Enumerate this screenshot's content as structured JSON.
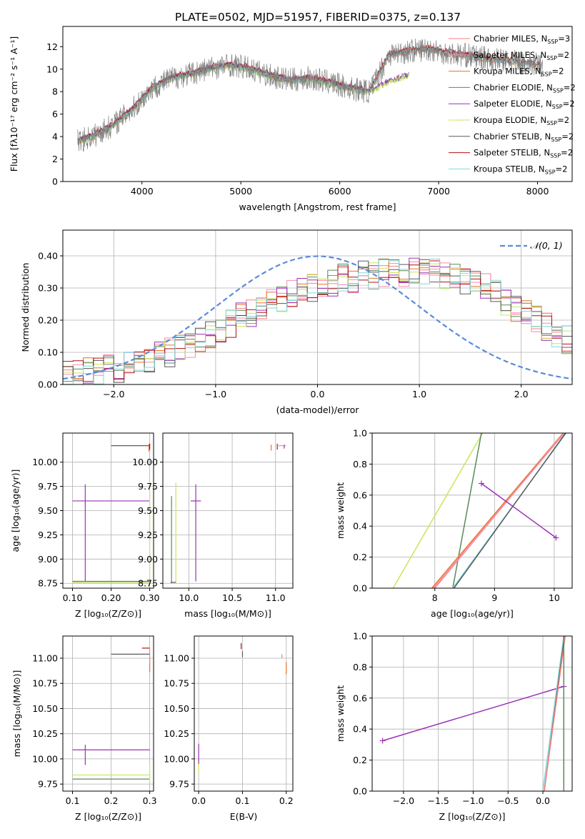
{
  "figure_title": "PLATE=0502, MJD=51957, FIBERID=0375, z=0.137",
  "colors": {
    "spectrum_data": "#808080",
    "series": [
      "#ff7f7f",
      "#f48fb1",
      "#e8712a",
      "#5a8a5a",
      "#9b30b5",
      "#c8e65a",
      "#5a5a5a",
      "#b01010",
      "#80d8e0"
    ],
    "normal_curve": "#5b8bd9",
    "grid": "#b0b0b0"
  },
  "chart_data": [
    {
      "id": "spectrum",
      "type": "line",
      "xlabel": "wavelength [Angstrom, rest frame]",
      "ylabel": "Flux [fλ10⁻¹⁷ erg cm⁻² s⁻¹ A⁻¹]",
      "xlim": [
        3200,
        8350
      ],
      "ylim": [
        0,
        13.8
      ],
      "xticks": [
        4000,
        5000,
        6000,
        7000,
        8000
      ],
      "yticks": [
        0,
        2,
        4,
        6,
        8,
        10,
        12
      ],
      "grid": false,
      "legend_position": "top-right",
      "legend": [
        {
          "label": "Chabrier MILES, N",
          "sub": "SSP",
          "suffix": "=3"
        },
        {
          "label": "Salpeter MILES, N",
          "sub": "SSP",
          "suffix": "=2"
        },
        {
          "label": "Kroupa MILES, N",
          "sub": "SSP",
          "suffix": "=2"
        },
        {
          "label": "Chabrier ELODIE, N",
          "sub": "SSP",
          "suffix": "=2"
        },
        {
          "label": "Salpeter ELODIE, N",
          "sub": "SSP",
          "suffix": "=2"
        },
        {
          "label": "Kroupa ELODIE, N",
          "sub": "SSP",
          "suffix": "=2"
        },
        {
          "label": "Chabrier STELIB, N",
          "sub": "SSP",
          "suffix": "=2"
        },
        {
          "label": "Salpeter STELIB, N",
          "sub": "SSP",
          "suffix": "=2"
        },
        {
          "label": "Kroupa STELIB, N",
          "sub": "SSP",
          "suffix": "=2"
        }
      ],
      "continuum_points": {
        "x": [
          3350,
          3500,
          3700,
          3900,
          4100,
          4300,
          4500,
          4700,
          4900,
          5100,
          5300,
          5500,
          5700,
          5900,
          6100,
          6300,
          6500,
          6700,
          6900,
          7100,
          7300,
          7500,
          7700,
          7900,
          8050
        ],
        "miles_stelib_y": [
          3.6,
          4.0,
          5.0,
          6.4,
          8.3,
          9.2,
          9.6,
          10.1,
          10.4,
          10.0,
          9.4,
          9.0,
          9.2,
          8.8,
          8.3,
          8.0,
          11.3,
          11.6,
          11.8,
          11.4,
          11.2,
          10.9,
          10.7,
          10.5,
          10.3
        ],
        "elodie_y": [
          3.6,
          4.0,
          5.0,
          6.4,
          8.3,
          9.2,
          9.6,
          10.1,
          10.4,
          10.0,
          9.4,
          9.0,
          9.2,
          8.8,
          8.3,
          8.0,
          9.0,
          9.5,
          null,
          null,
          null,
          null,
          null,
          null,
          null
        ]
      }
    },
    {
      "id": "residuals",
      "type": "line",
      "xlabel": "(data-model)/error",
      "ylabel": "Normed distribution",
      "xlim": [
        -2.5,
        2.5
      ],
      "ylim": [
        0,
        0.48
      ],
      "xticks": [
        -2,
        -1,
        0,
        1,
        2
      ],
      "yticks": [
        0.0,
        0.1,
        0.2,
        0.3,
        0.4
      ],
      "grid": true,
      "legend_position": "top-right",
      "legend": [
        "𝒩(0, 1)"
      ],
      "normal": {
        "mean": 0,
        "sigma": 1
      },
      "hist_x": [
        -2.5,
        -2.4,
        -2.3,
        -2.2,
        -2.1,
        -2.0,
        -1.9,
        -1.8,
        -1.7,
        -1.6,
        -1.5,
        -1.4,
        -1.3,
        -1.2,
        -1.1,
        -1.0,
        -0.9,
        -0.8,
        -0.7,
        -0.6,
        -0.5,
        -0.4,
        -0.3,
        -0.2,
        -0.1,
        0.0,
        0.1,
        0.2,
        0.3,
        0.4,
        0.5,
        0.6,
        0.7,
        0.8,
        0.9,
        1.0,
        1.1,
        1.2,
        1.3,
        1.4,
        1.5,
        1.6,
        1.7,
        1.8,
        1.9,
        2.0,
        2.1,
        2.2,
        2.3,
        2.4
      ],
      "hist_y": [
        0.03,
        0.03,
        0.04,
        0.04,
        0.05,
        0.05,
        0.06,
        0.07,
        0.08,
        0.09,
        0.1,
        0.11,
        0.12,
        0.14,
        0.15,
        0.17,
        0.19,
        0.21,
        0.22,
        0.24,
        0.26,
        0.27,
        0.28,
        0.29,
        0.3,
        0.31,
        0.32,
        0.33,
        0.33,
        0.34,
        0.34,
        0.35,
        0.35,
        0.35,
        0.35,
        0.35,
        0.35,
        0.34,
        0.33,
        0.32,
        0.31,
        0.3,
        0.28,
        0.26,
        0.24,
        0.22,
        0.2,
        0.18,
        0.16,
        0.14
      ]
    },
    {
      "id": "age_vs_Z",
      "type": "scatter",
      "xlabel": "Z [log₁₀(Z/Z⊙)]",
      "ylabel": "age  [log₁₀(age/yr)]",
      "xlim": [
        0.075,
        0.31
      ],
      "ylim": [
        8.7,
        10.3
      ],
      "xticks": [
        0.1,
        0.2,
        0.3
      ],
      "yticks": [
        8.75,
        9.0,
        9.25,
        9.5,
        9.75,
        10.0
      ],
      "grid": true
    },
    {
      "id": "age_vs_mass",
      "type": "scatter",
      "xlabel": "mass [log₁₀(M/M⊙)]",
      "ylabel": "",
      "xlim": [
        9.7,
        11.2
      ],
      "ylim": [
        8.7,
        10.3
      ],
      "xticks": [
        10.0,
        10.5,
        11.0
      ],
      "yticks": [
        8.75,
        9.0,
        9.25,
        9.5,
        9.75,
        10.0
      ],
      "grid": true
    },
    {
      "id": "weight_vs_age",
      "type": "line",
      "xlabel": "age  [log₁₀(age/yr)]",
      "ylabel": "mass weight",
      "xlim": [
        6.95,
        10.3
      ],
      "ylim": [
        0,
        1
      ],
      "xticks": [
        8,
        9,
        10
      ],
      "yticks": [
        0.0,
        0.2,
        0.4,
        0.6,
        0.8,
        1.0
      ],
      "grid": true
    },
    {
      "id": "mass_vs_Z",
      "type": "scatter",
      "xlabel": "Z [log₁₀(Z/Z⊙)]",
      "ylabel": "mass [log₁₀(M/M⊙)]",
      "xlim": [
        0.075,
        0.31
      ],
      "ylim": [
        9.68,
        11.22
      ],
      "xticks": [
        0.1,
        0.2,
        0.3
      ],
      "yticks": [
        9.75,
        10.0,
        10.25,
        10.5,
        10.75,
        11.0
      ],
      "grid": true
    },
    {
      "id": "mass_vs_EBV",
      "type": "scatter",
      "xlabel": "E(B-V)",
      "ylabel": "",
      "xlim": [
        -0.01,
        0.215
      ],
      "ylim": [
        9.68,
        11.22
      ],
      "xticks": [
        0.0,
        0.1,
        0.2
      ],
      "yticks": [
        9.75,
        10.0,
        10.25,
        10.5,
        10.75,
        11.0
      ],
      "grid": true
    },
    {
      "id": "weight_vs_Z",
      "type": "line",
      "xlabel": "Z [log₁₀(Z/Z⊙)]",
      "ylabel": "mass weight",
      "xlim": [
        -2.45,
        0.42
      ],
      "ylim": [
        0,
        1
      ],
      "xticks": [
        -2.0,
        -1.5,
        -1.0,
        -0.5,
        0.0
      ],
      "yticks": [
        0.0,
        0.2,
        0.4,
        0.6,
        0.8,
        1.0
      ],
      "grid": true
    }
  ]
}
